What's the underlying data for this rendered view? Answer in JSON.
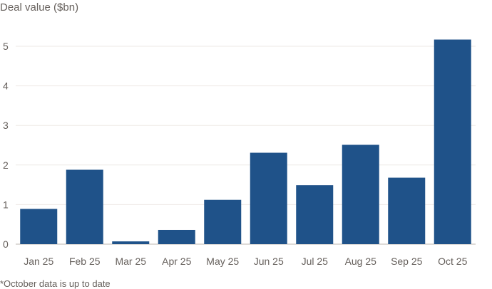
{
  "chart_data": {
    "type": "bar",
    "title": "",
    "xlabel": "",
    "ylabel": "Deal value ($bn)",
    "categories": [
      "Jan 25",
      "Feb 25",
      "Mar 25",
      "Apr 25",
      "May 25",
      "Jun 25",
      "Jul 25",
      "Aug 25",
      "Sep 25",
      "Oct 25"
    ],
    "values": [
      0.89,
      1.88,
      0.07,
      0.36,
      1.12,
      2.31,
      1.49,
      2.51,
      1.68,
      5.17
    ],
    "ylim": [
      0,
      5.5
    ],
    "yticks": [
      0,
      1,
      2,
      3,
      4,
      5
    ],
    "grid": true,
    "legend": "none",
    "bar_color": "#1f5289",
    "footnote": "*October data is up to date"
  }
}
